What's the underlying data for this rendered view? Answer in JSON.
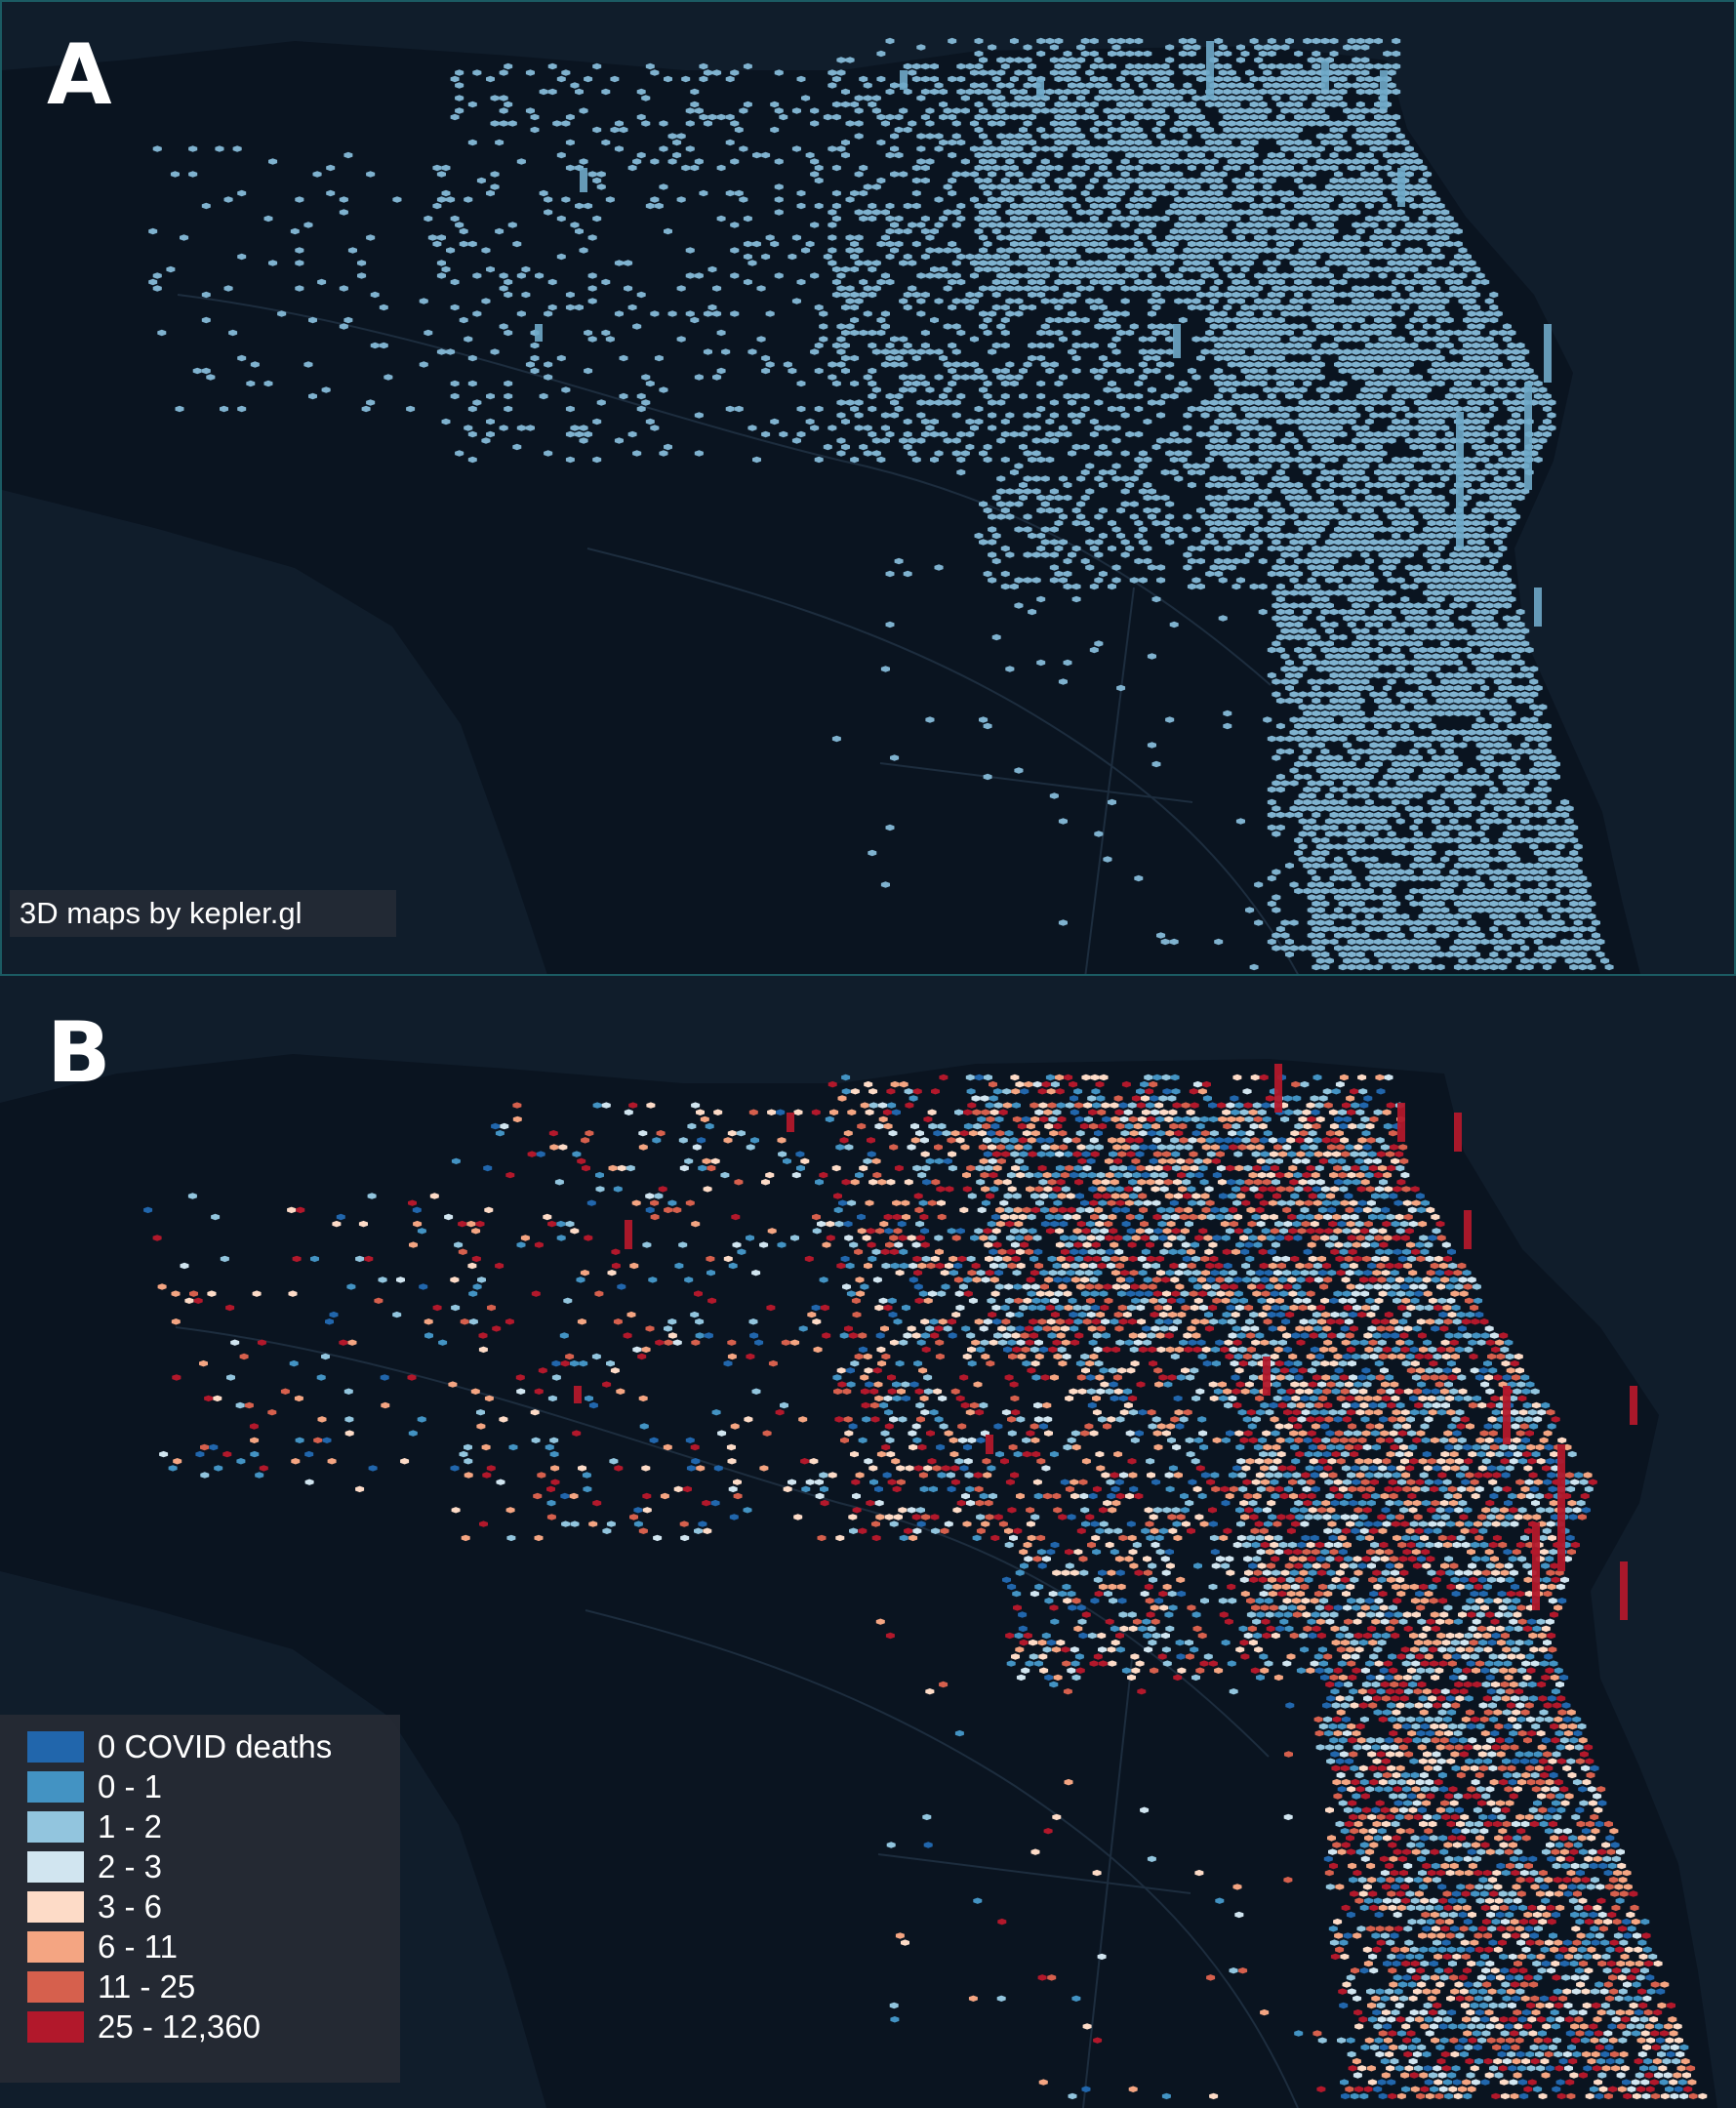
{
  "panels": {
    "a": {
      "letter": "A",
      "attribution": "3D maps by kepler.gl"
    },
    "b": {
      "letter": "B"
    }
  },
  "map_style": {
    "background": "#101d2b",
    "land": "#0a1420",
    "boundary": "#223244",
    "panel_a_hex_color": "#7fb2cf",
    "panel_a_column_color": "#6fa8c8"
  },
  "legend": {
    "items": [
      {
        "label": "0 COVID deaths",
        "color": "#2166ac"
      },
      {
        "label": "0 - 1",
        "color": "#4393c3"
      },
      {
        "label": "1 - 2",
        "color": "#92c5de"
      },
      {
        "label": "2 - 3",
        "color": "#d1e5f0"
      },
      {
        "label": "3 - 6",
        "color": "#fddbc7"
      },
      {
        "label": "6 - 11",
        "color": "#f4a582"
      },
      {
        "label": "11 - 25",
        "color": "#d6604d"
      },
      {
        "label": "25 - 12,360",
        "color": "#b2182b"
      }
    ]
  }
}
